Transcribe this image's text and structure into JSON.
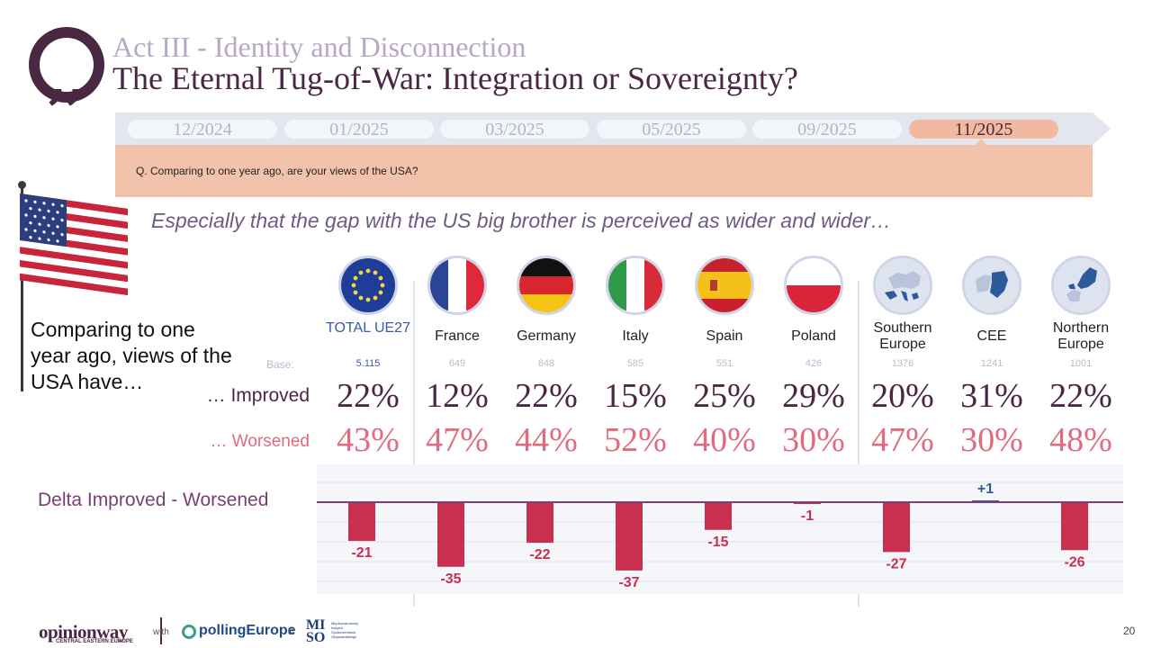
{
  "header": {
    "act_title": "Act III - Identity and Disconnection",
    "main_title": "The Eternal Tug-of-War: Integration or Sovereignty?"
  },
  "timeline": {
    "items": [
      "12/2024",
      "01/2025",
      "03/2025",
      "05/2025",
      "09/2025",
      "11/2025"
    ],
    "active": "11/2025",
    "question": "Q. Comparing to one year ago, are your views of the USA?"
  },
  "subtitle": "Especially that the gap with the US big brother is perceived as wider and wider…",
  "left_label": "Comparing to one year ago, views of the USA have…",
  "rows": {
    "base_label": "Base:",
    "improved_label": "… Improved",
    "worsened_label": "… Worsened",
    "delta_label": "Delta Improved -  Worsened"
  },
  "columns": [
    {
      "label": "TOTAL UE27",
      "base": "5.115",
      "improved": "22%",
      "worsened": "43%",
      "flag_icon": "eu-flag-icon"
    },
    {
      "label": "France",
      "base": "649",
      "improved": "12%",
      "worsened": "47%",
      "flag_icon": "france-flag-icon"
    },
    {
      "label": "Germany",
      "base": "848",
      "improved": "22%",
      "worsened": "44%",
      "flag_icon": "germany-flag-icon"
    },
    {
      "label": "Italy",
      "base": "585",
      "improved": "15%",
      "worsened": "52%",
      "flag_icon": "italy-flag-icon"
    },
    {
      "label": "Spain",
      "base": "551",
      "improved": "25%",
      "worsened": "40%",
      "flag_icon": "spain-flag-icon"
    },
    {
      "label": "Poland",
      "base": "426",
      "improved": "29%",
      "worsened": "30%",
      "flag_icon": "poland-flag-icon"
    },
    {
      "label": "Southern Europe",
      "base": "1376",
      "improved": "20%",
      "worsened": "47%",
      "flag_icon": "southern-europe-map-icon"
    },
    {
      "label": "CEE",
      "base": "1241",
      "improved": "31%",
      "worsened": "30%",
      "flag_icon": "cee-map-icon"
    },
    {
      "label": "Northern Europe",
      "base": "1001",
      "improved": "22%",
      "worsened": "48%",
      "flag_icon": "northern-europe-map-icon"
    }
  ],
  "chart_data": {
    "type": "bar",
    "title": "Delta Improved - Worsened",
    "categories": [
      "TOTAL UE27",
      "France",
      "Germany",
      "Italy",
      "Spain",
      "Poland",
      "Southern Europe",
      "CEE",
      "Northern Europe"
    ],
    "values": [
      -21,
      -35,
      -22,
      -37,
      -15,
      -1,
      -27,
      1,
      -26
    ],
    "labels": [
      "-21",
      "-35",
      "-22",
      "-37",
      "-15",
      "-1",
      "-27",
      "+1",
      "-26"
    ],
    "ylim": [
      -40,
      5
    ],
    "xlabel": "",
    "ylabel": "",
    "colors": {
      "negative": "#c9304f",
      "positive": "#2d5c9c",
      "zero_line": "#7a3f74"
    }
  },
  "footer": {
    "brand": "opinionway",
    "brand_sub": "CENTRAL EASTERN EUROPE",
    "with": "with",
    "partner": "pollingEurope",
    "amp": "&",
    "miso": "MI SO",
    "miso_text": "Międzynarodowy Instytut Społeczeństwa Obywatelskiego",
    "page": "20"
  }
}
